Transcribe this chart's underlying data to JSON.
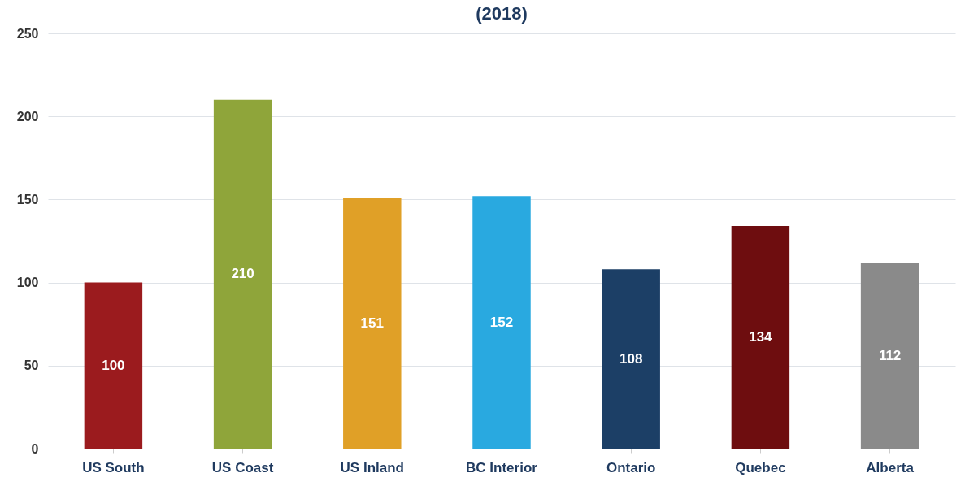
{
  "chart_data": {
    "type": "bar",
    "title": "(2018)",
    "categories": [
      "US South",
      "US Coast",
      "US Inland",
      "BC Interior",
      "Ontario",
      "Quebec",
      "Alberta"
    ],
    "values": [
      100,
      210,
      151,
      152,
      108,
      134,
      112
    ],
    "colors": [
      "#9b1b1e",
      "#8fa53a",
      "#e0a027",
      "#29a9e0",
      "#1c3f66",
      "#6e0d0f",
      "#8a8a8a"
    ],
    "ylim": [
      0,
      250
    ],
    "yticks": [
      0,
      50,
      100,
      150,
      200,
      250
    ],
    "grid": "y",
    "data_labels": true
  }
}
